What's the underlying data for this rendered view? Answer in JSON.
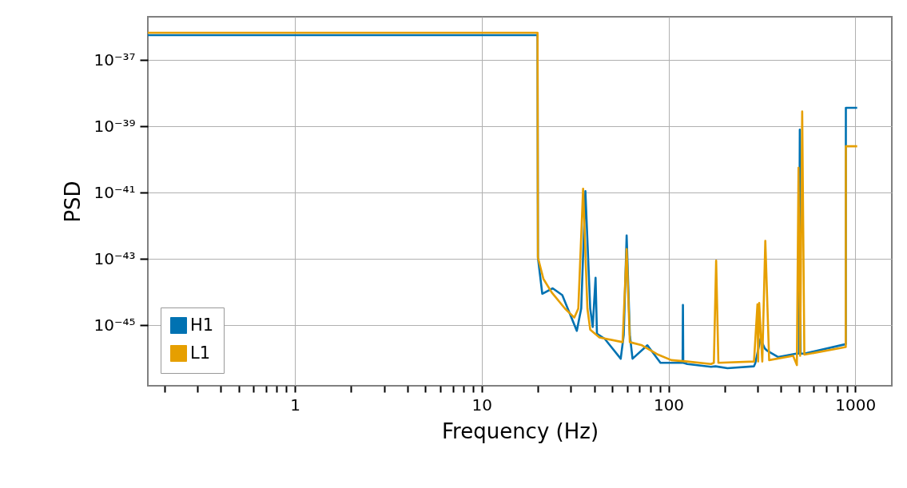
{
  "chart_data": {
    "type": "line",
    "xlabel": "Frequency (Hz)",
    "ylabel": "PSD",
    "log": "xy",
    "grid": true,
    "legend": "bottom left",
    "marker": "none",
    "line_style": "solid",
    "xlim": [
      0.163,
      1570
    ],
    "xticks": [
      {
        "value": 0.2,
        "label": null
      },
      {
        "value": 0.3,
        "label": null
      },
      {
        "value": 0.4,
        "label": null
      },
      {
        "value": 0.5,
        "label": null
      },
      {
        "value": 0.6,
        "label": null
      },
      {
        "value": 0.7,
        "label": null
      },
      {
        "value": 0.8,
        "label": null
      },
      {
        "value": 0.9,
        "label": null
      },
      1,
      {
        "value": 2,
        "label": null
      },
      {
        "value": 3,
        "label": null
      },
      {
        "value": 4,
        "label": null
      },
      {
        "value": 5,
        "label": null
      },
      {
        "value": 6,
        "label": null
      },
      {
        "value": 7,
        "label": null
      },
      {
        "value": 8,
        "label": null
      },
      {
        "value": 9,
        "label": null
      },
      10,
      {
        "value": 20,
        "label": null
      },
      {
        "value": 30,
        "label": null
      },
      {
        "value": 40,
        "label": null
      },
      {
        "value": 50,
        "label": null
      },
      {
        "value": 60,
        "label": null
      },
      {
        "value": 70,
        "label": null
      },
      {
        "value": 80,
        "label": null
      },
      {
        "value": 90,
        "label": null
      },
      100,
      {
        "value": 200,
        "label": null
      },
      {
        "value": 300,
        "label": null
      },
      {
        "value": 400,
        "label": null
      },
      {
        "value": 500,
        "label": null
      },
      {
        "value": 600,
        "label": null
      },
      {
        "value": 700,
        "label": null
      },
      {
        "value": 800,
        "label": null
      },
      {
        "value": 900,
        "label": null
      },
      1000
    ],
    "ylim": [
      1.5e-47,
      2e-36
    ],
    "yticks": [
      {
        "value": 1e-45,
        "label": "10⁻⁴⁵"
      },
      {
        "value": 1e-43,
        "label": "10⁻⁴³"
      },
      {
        "value": 1e-41,
        "label": "10⁻⁴¹"
      },
      {
        "value": 1e-39,
        "label": "10⁻³⁹"
      },
      {
        "value": 1e-37,
        "label": "10⁻³⁷"
      }
    ],
    "series": [
      {
        "name": "H1",
        "color": "#0072b2",
        "x": [
          0.163,
          19.9,
          20,
          21.1,
          24,
          27,
          32.3,
          34.1,
          35.9,
          38.1,
          39.3,
          40.7,
          41.4,
          45.6,
          55.5,
          57.6,
          59.7,
          62.1,
          64.2,
          77.1,
          90.6,
          100,
          119,
          119.5,
          120,
          126,
          169,
          178.5,
          207,
          287,
          292,
          311,
          328,
          338,
          387,
          484,
          500,
          505,
          510,
          534,
          890,
          891,
          1024
        ],
        "values": [
          5.6e-37,
          5.6e-37,
          1.1e-43,
          8.9e-45,
          1.3e-44,
          8.1e-45,
          6.8e-46,
          3.2e-45,
          1.1e-41,
          3.2e-45,
          8.9e-46,
          2.7e-44,
          5.6e-46,
          3.9e-46,
          9.8e-47,
          5.1e-46,
          5.1e-43,
          5.1e-46,
          9.8e-47,
          2.5e-46,
          7.4e-47,
          7.4e-47,
          7.4e-47,
          4.1e-45,
          7.4e-47,
          6.8e-47,
          5.6e-47,
          5.8e-47,
          5.1e-47,
          5.8e-47,
          7.4e-47,
          3.9e-46,
          2e-46,
          1.7e-46,
          1.1e-46,
          1.4e-46,
          1.4e-46,
          7.9e-40,
          1.4e-46,
          1.4e-46,
          2.7e-46,
          3.6e-39,
          3.6e-39
        ]
      },
      {
        "name": "L1",
        "color": "#e69f00",
        "x": [
          0.163,
          19.9,
          20,
          21.4,
          23.7,
          27.9,
          31.3,
          32.9,
          34.9,
          36.8,
          38.1,
          42.7,
          56.8,
          59.7,
          62.1,
          72.1,
          88,
          103.5,
          126,
          169,
          175,
          180,
          185,
          287,
          299.6,
          302,
          306,
          318,
          330,
          346,
          465,
          487,
          497,
          507,
          520,
          534,
          890,
          891,
          1024
        ],
        "values": [
          6.6e-37,
          6.6e-37,
          1.1e-43,
          2.5e-44,
          9.8e-45,
          3.2e-45,
          1.7e-45,
          3.2e-45,
          1.3e-41,
          3.2e-45,
          7.4e-46,
          4.3e-46,
          3.1e-46,
          2e-43,
          3.1e-46,
          2.5e-46,
          1.3e-46,
          8.9e-47,
          8.1e-47,
          6.8e-47,
          7.4e-47,
          8.9e-44,
          7.4e-47,
          8.1e-47,
          4.3e-45,
          8.1e-47,
          4.7e-45,
          8.1e-47,
          3.5e-43,
          8.9e-47,
          1.2e-46,
          6.3e-47,
          5.6e-41,
          1.2e-46,
          2.8e-39,
          1.3e-46,
          2.2e-46,
          2.5e-40,
          2.5e-40
        ]
      }
    ]
  }
}
